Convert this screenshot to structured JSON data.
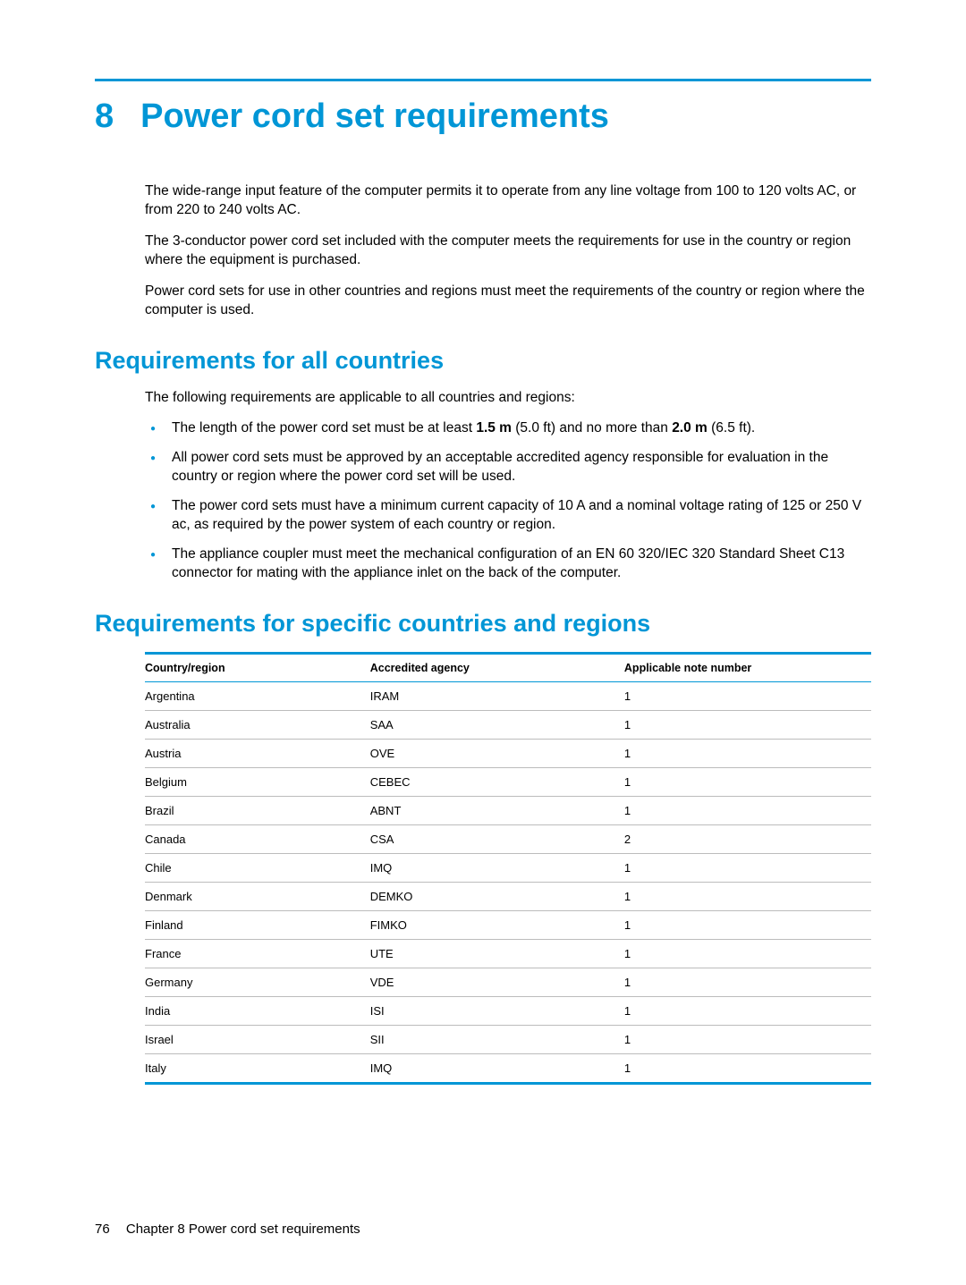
{
  "colors": {
    "accent": "#0096d6",
    "text": "#000000",
    "row_border": "#bcbcbc",
    "background": "#ffffff"
  },
  "typography": {
    "body_pt": 15.5,
    "h1_pt": 38,
    "h2_pt": 27,
    "table_pt": 13,
    "family": "Arial"
  },
  "chapter": {
    "number": "8",
    "title": "Power cord set requirements"
  },
  "intro": {
    "p1": "The wide-range input feature of the computer permits it to operate from any line voltage from 100 to 120 volts AC, or from 220 to 240 volts AC.",
    "p2": "The 3-conductor power cord set included with the computer meets the requirements for use in the country or region where the equipment is purchased.",
    "p3": "Power cord sets for use in other countries and regions must meet the requirements of the country or region where the computer is used."
  },
  "section_all": {
    "heading": "Requirements for all countries",
    "lead": "The following requirements are applicable to all countries and regions:",
    "bullets": {
      "b1_pre": "The length of the power cord set must be at least ",
      "b1_bold1": "1.5 m",
      "b1_mid": " (5.0 ft) and no more than ",
      "b1_bold2": "2.0 m",
      "b1_post": " (6.5 ft).",
      "b2": "All power cord sets must be approved by an acceptable accredited agency responsible for evaluation in the country or region where the power cord set will be used.",
      "b3": "The power cord sets must have a minimum current capacity of 10 A and a nominal voltage rating of 125 or 250 V ac, as required by the power system of each country or region.",
      "b4": "The appliance coupler must meet the mechanical configuration of an EN 60 320/IEC 320 Standard Sheet C13 connector for mating with the appliance inlet on the back of the computer."
    }
  },
  "section_specific": {
    "heading": "Requirements for specific countries and regions",
    "columns": [
      "Country/region",
      "Accredited agency",
      "Applicable note number"
    ],
    "rows": [
      [
        "Argentina",
        "IRAM",
        "1"
      ],
      [
        "Australia",
        "SAA",
        "1"
      ],
      [
        "Austria",
        "OVE",
        "1"
      ],
      [
        "Belgium",
        "CEBEC",
        "1"
      ],
      [
        "Brazil",
        "ABNT",
        "1"
      ],
      [
        "Canada",
        "CSA",
        "2"
      ],
      [
        "Chile",
        "IMQ",
        "1"
      ],
      [
        "Denmark",
        "DEMKO",
        "1"
      ],
      [
        "Finland",
        "FIMKO",
        "1"
      ],
      [
        "France",
        "UTE",
        "1"
      ],
      [
        "Germany",
        "VDE",
        "1"
      ],
      [
        "India",
        "ISI",
        "1"
      ],
      [
        "Israel",
        "SII",
        "1"
      ],
      [
        "Italy",
        "IMQ",
        "1"
      ]
    ]
  },
  "footer": {
    "page_number": "76",
    "chapter_label": "Chapter 8   Power cord set requirements"
  }
}
